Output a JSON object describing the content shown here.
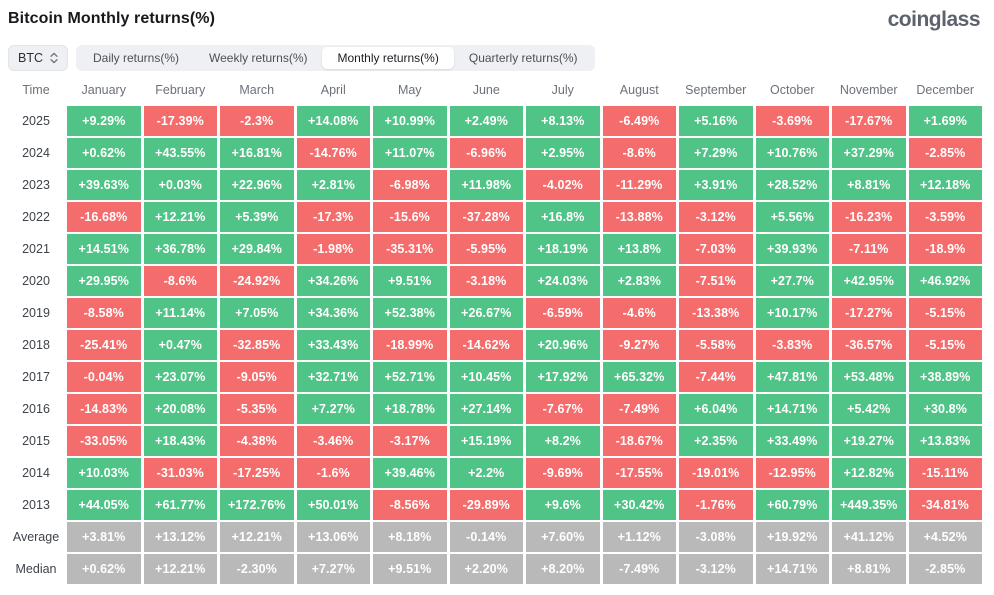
{
  "header": {
    "title": "Bitcoin Monthly returns(%)",
    "logo": "coinglass"
  },
  "controls": {
    "coin_selector": "BTC",
    "tabs": [
      {
        "label": "Daily returns(%)",
        "active": false
      },
      {
        "label": "Weekly returns(%)",
        "active": false
      },
      {
        "label": "Monthly returns(%)",
        "active": true
      },
      {
        "label": "Quarterly returns(%)",
        "active": false
      }
    ]
  },
  "colors": {
    "positive": "#50c487",
    "negative": "#f56c6c",
    "summary": "#b9b9b9"
  },
  "table": {
    "time_header": "Time",
    "months": [
      "January",
      "February",
      "March",
      "April",
      "May",
      "June",
      "July",
      "August",
      "September",
      "October",
      "November",
      "December"
    ],
    "rows": [
      {
        "label": "2025",
        "type": "year",
        "values": [
          "+9.29%",
          "-17.39%",
          "-2.3%",
          "+14.08%",
          "+10.99%",
          "+2.49%",
          "+8.13%",
          "-6.49%",
          "+5.16%",
          "-3.69%",
          "-17.67%",
          "+1.69%"
        ]
      },
      {
        "label": "2024",
        "type": "year",
        "values": [
          "+0.62%",
          "+43.55%",
          "+16.81%",
          "-14.76%",
          "+11.07%",
          "-6.96%",
          "+2.95%",
          "-8.6%",
          "+7.29%",
          "+10.76%",
          "+37.29%",
          "-2.85%"
        ]
      },
      {
        "label": "2023",
        "type": "year",
        "values": [
          "+39.63%",
          "+0.03%",
          "+22.96%",
          "+2.81%",
          "-6.98%",
          "+11.98%",
          "-4.02%",
          "-11.29%",
          "+3.91%",
          "+28.52%",
          "+8.81%",
          "+12.18%"
        ]
      },
      {
        "label": "2022",
        "type": "year",
        "values": [
          "-16.68%",
          "+12.21%",
          "+5.39%",
          "-17.3%",
          "-15.6%",
          "-37.28%",
          "+16.8%",
          "-13.88%",
          "-3.12%",
          "+5.56%",
          "-16.23%",
          "-3.59%"
        ]
      },
      {
        "label": "2021",
        "type": "year",
        "values": [
          "+14.51%",
          "+36.78%",
          "+29.84%",
          "-1.98%",
          "-35.31%",
          "-5.95%",
          "+18.19%",
          "+13.8%",
          "-7.03%",
          "+39.93%",
          "-7.11%",
          "-18.9%"
        ]
      },
      {
        "label": "2020",
        "type": "year",
        "values": [
          "+29.95%",
          "-8.6%",
          "-24.92%",
          "+34.26%",
          "+9.51%",
          "-3.18%",
          "+24.03%",
          "+2.83%",
          "-7.51%",
          "+27.7%",
          "+42.95%",
          "+46.92%"
        ]
      },
      {
        "label": "2019",
        "type": "year",
        "values": [
          "-8.58%",
          "+11.14%",
          "+7.05%",
          "+34.36%",
          "+52.38%",
          "+26.67%",
          "-6.59%",
          "-4.6%",
          "-13.38%",
          "+10.17%",
          "-17.27%",
          "-5.15%"
        ]
      },
      {
        "label": "2018",
        "type": "year",
        "values": [
          "-25.41%",
          "+0.47%",
          "-32.85%",
          "+33.43%",
          "-18.99%",
          "-14.62%",
          "+20.96%",
          "-9.27%",
          "-5.58%",
          "-3.83%",
          "-36.57%",
          "-5.15%"
        ]
      },
      {
        "label": "2017",
        "type": "year",
        "values": [
          "-0.04%",
          "+23.07%",
          "-9.05%",
          "+32.71%",
          "+52.71%",
          "+10.45%",
          "+17.92%",
          "+65.32%",
          "-7.44%",
          "+47.81%",
          "+53.48%",
          "+38.89%"
        ]
      },
      {
        "label": "2016",
        "type": "year",
        "values": [
          "-14.83%",
          "+20.08%",
          "-5.35%",
          "+7.27%",
          "+18.78%",
          "+27.14%",
          "-7.67%",
          "-7.49%",
          "+6.04%",
          "+14.71%",
          "+5.42%",
          "+30.8%"
        ]
      },
      {
        "label": "2015",
        "type": "year",
        "values": [
          "-33.05%",
          "+18.43%",
          "-4.38%",
          "-3.46%",
          "-3.17%",
          "+15.19%",
          "+8.2%",
          "-18.67%",
          "+2.35%",
          "+33.49%",
          "+19.27%",
          "+13.83%"
        ]
      },
      {
        "label": "2014",
        "type": "year",
        "values": [
          "+10.03%",
          "-31.03%",
          "-17.25%",
          "-1.6%",
          "+39.46%",
          "+2.2%",
          "-9.69%",
          "-17.55%",
          "-19.01%",
          "-12.95%",
          "+12.82%",
          "-15.11%"
        ]
      },
      {
        "label": "2013",
        "type": "year",
        "values": [
          "+44.05%",
          "+61.77%",
          "+172.76%",
          "+50.01%",
          "-8.56%",
          "-29.89%",
          "+9.6%",
          "+30.42%",
          "-1.76%",
          "+60.79%",
          "+449.35%",
          "-34.81%"
        ]
      },
      {
        "label": "Average",
        "type": "summary",
        "values": [
          "+3.81%",
          "+13.12%",
          "+12.21%",
          "+13.06%",
          "+8.18%",
          "-0.14%",
          "+7.60%",
          "+1.12%",
          "-3.08%",
          "+19.92%",
          "+41.12%",
          "+4.52%"
        ]
      },
      {
        "label": "Median",
        "type": "summary",
        "values": [
          "+0.62%",
          "+12.21%",
          "-2.30%",
          "+7.27%",
          "+9.51%",
          "+2.20%",
          "+8.20%",
          "-7.49%",
          "-3.12%",
          "+14.71%",
          "+8.81%",
          "-2.85%"
        ]
      }
    ]
  }
}
